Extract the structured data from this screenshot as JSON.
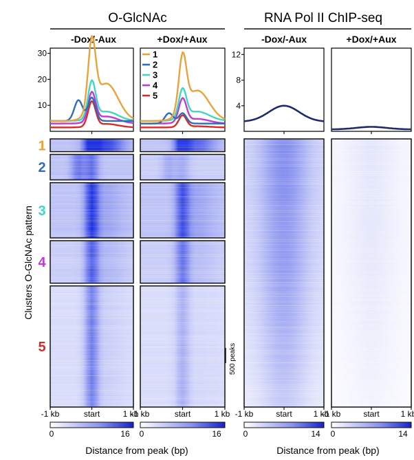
{
  "chart_data": {
    "type": "heatmap",
    "groups": [
      {
        "title": "O-GlcNAc",
        "conditions": [
          "-Dox/-Aux",
          "+Dox/+Aux"
        ]
      },
      {
        "title": "RNA Pol II ChIP-seq",
        "conditions": [
          "-Dox/-Aux",
          "+Dox/+Aux"
        ]
      }
    ],
    "profile_x": [
      "-1 kb",
      "start",
      "1 kb"
    ],
    "xlabel": "Distance from peak (bp)",
    "ylabel": "Clusters O-GlcNAc pattern",
    "scale_label": "500 peaks",
    "clusters": [
      {
        "name": "1",
        "color": "#e8a33a",
        "peak_count": 60
      },
      {
        "name": "2",
        "color": "#2f6db8",
        "peak_count": 120
      },
      {
        "name": "3",
        "color": "#3fd6c4",
        "peak_count": 260
      },
      {
        "name": "4",
        "color": "#c13ad4",
        "peak_count": 200
      },
      {
        "name": "5",
        "color": "#d92a2a",
        "peak_count": 570
      }
    ],
    "profiles_oglcnac": {
      "ylim": [
        0,
        32
      ],
      "yticks": [
        "10",
        "20",
        "30"
      ],
      "minus_dox": [
        {
          "cluster": "1",
          "baseline": 4,
          "peak": 30,
          "shoulder": 20
        },
        {
          "cluster": "2",
          "baseline": 4,
          "peak": 13,
          "left_bump": 12
        },
        {
          "cluster": "3",
          "baseline": 4,
          "peak": 18,
          "shoulder": 8
        },
        {
          "cluster": "4",
          "baseline": 3,
          "peak": 14,
          "shoulder": 6
        },
        {
          "cluster": "5",
          "baseline": 1.5,
          "peak": 11,
          "shoulder": 3
        }
      ],
      "plus_dox": [
        {
          "cluster": "1",
          "baseline": 4,
          "peak": 25,
          "shoulder": 17
        },
        {
          "cluster": "2",
          "baseline": 3,
          "peak": 7,
          "left_bump": 7
        },
        {
          "cluster": "3",
          "baseline": 4,
          "peak": 15,
          "shoulder": 8
        },
        {
          "cluster": "4",
          "baseline": 3,
          "peak": 12,
          "shoulder": 5
        },
        {
          "cluster": "5",
          "baseline": 1.5,
          "peak": 6,
          "shoulder": 2
        }
      ]
    },
    "profiles_polii": {
      "ylim": [
        0,
        13
      ],
      "yticks": [
        "4",
        "8",
        "12"
      ],
      "minus_dox": {
        "baseline": 1.5,
        "peak": 4
      },
      "plus_dox": {
        "baseline": 0.3,
        "peak": 0.7
      }
    },
    "colorbars": [
      {
        "min": "0",
        "max": "16"
      },
      {
        "min": "0",
        "max": "16"
      },
      {
        "min": "0",
        "max": "14"
      },
      {
        "min": "0",
        "max": "14"
      }
    ]
  }
}
